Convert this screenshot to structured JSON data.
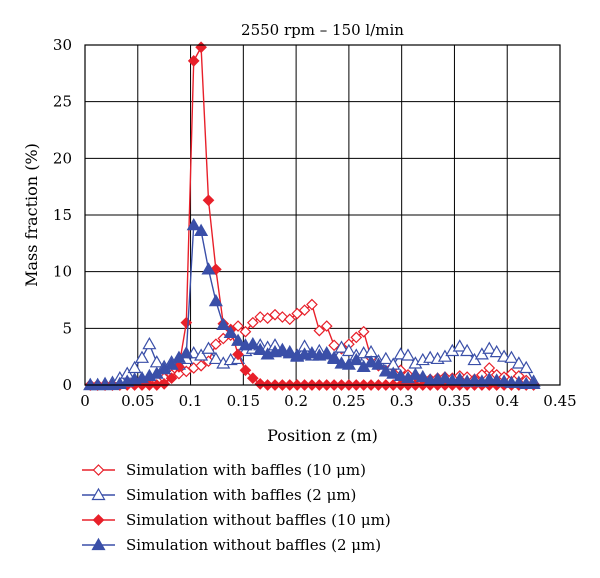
{
  "chart_data": {
    "type": "line",
    "title": "2550 rpm – 150 l/min",
    "xlabel": "Position z (m)",
    "ylabel": "Mass fraction (%)",
    "xlim": [
      0,
      0.45
    ],
    "ylim": [
      0,
      30
    ],
    "x_ticks": [
      "0",
      "0.05",
      "0.1",
      "0.15",
      "0.2",
      "0.25",
      "0.3",
      "0.35",
      "0.4",
      "0.45"
    ],
    "y_ticks": [
      "0",
      "5",
      "10",
      "15",
      "20",
      "25",
      "30"
    ],
    "grid": true,
    "legend_position": "bottom",
    "series": [
      {
        "name": "Simulation with baffles (10 μm)",
        "color": "#e8202a",
        "marker": "diamond-open",
        "x": [
          0.005,
          0.012,
          0.019,
          0.026,
          0.033,
          0.04,
          0.047,
          0.054,
          0.061,
          0.068,
          0.075,
          0.082,
          0.089,
          0.096,
          0.103,
          0.11,
          0.117,
          0.124,
          0.131,
          0.138,
          0.145,
          0.152,
          0.159,
          0.166,
          0.173,
          0.18,
          0.187,
          0.194,
          0.201,
          0.208,
          0.215,
          0.222,
          0.229,
          0.236,
          0.243,
          0.25,
          0.257,
          0.264,
          0.271,
          0.278,
          0.285,
          0.292,
          0.299,
          0.306,
          0.313,
          0.32,
          0.327,
          0.334,
          0.341,
          0.348,
          0.355,
          0.362,
          0.369,
          0.376,
          0.383,
          0.39,
          0.397,
          0.404,
          0.411,
          0.418,
          0.425
        ],
        "y": [
          0,
          0,
          0,
          0,
          0.1,
          0.2,
          0.4,
          0.5,
          0.4,
          0.4,
          0.6,
          0.9,
          1.0,
          1.2,
          1.5,
          1.7,
          2.1,
          3.6,
          4.1,
          4.4,
          5.2,
          4.7,
          5.5,
          6.0,
          5.9,
          6.2,
          6.0,
          5.8,
          6.3,
          6.6,
          7.1,
          4.8,
          5.2,
          3.5,
          3.2,
          3.6,
          4.2,
          4.7,
          2.4,
          1.7,
          1.9,
          1.6,
          1.3,
          0.9,
          0.8,
          0.6,
          0.5,
          0.6,
          0.7,
          0.6,
          0.8,
          0.7,
          0.5,
          0.9,
          1.5,
          0.9,
          0.7,
          1.0,
          0.8,
          0.4,
          0.1
        ]
      },
      {
        "name": "Simulation with baffles (2 μm)",
        "color": "#3a4fa8",
        "marker": "triangle-open",
        "x": [
          0.005,
          0.012,
          0.019,
          0.026,
          0.033,
          0.04,
          0.047,
          0.054,
          0.061,
          0.068,
          0.075,
          0.082,
          0.089,
          0.096,
          0.103,
          0.11,
          0.117,
          0.124,
          0.131,
          0.138,
          0.145,
          0.152,
          0.159,
          0.166,
          0.173,
          0.18,
          0.187,
          0.194,
          0.201,
          0.208,
          0.215,
          0.222,
          0.229,
          0.236,
          0.243,
          0.25,
          0.257,
          0.264,
          0.271,
          0.278,
          0.285,
          0.292,
          0.299,
          0.306,
          0.313,
          0.32,
          0.327,
          0.334,
          0.341,
          0.348,
          0.355,
          0.362,
          0.369,
          0.376,
          0.383,
          0.39,
          0.397,
          0.404,
          0.411,
          0.418,
          0.425
        ],
        "y": [
          0,
          0,
          0.1,
          0.2,
          0.6,
          1.0,
          1.5,
          2.4,
          3.6,
          2.0,
          1.6,
          2.0,
          1.8,
          2.3,
          2.8,
          2.6,
          3.2,
          2.3,
          1.9,
          2.2,
          2.3,
          3.0,
          3.2,
          3.5,
          3.3,
          3.5,
          3.1,
          2.9,
          2.6,
          3.4,
          2.6,
          3.0,
          2.8,
          2.4,
          3.3,
          3.0,
          2.6,
          2.8,
          2.9,
          2.1,
          2.3,
          1.8,
          2.7,
          2.6,
          1.9,
          2.2,
          2.4,
          2.3,
          2.5,
          3.0,
          3.4,
          3.0,
          2.2,
          2.7,
          3.2,
          2.9,
          2.5,
          2.4,
          1.9,
          1.5,
          0.3
        ]
      },
      {
        "name": "Simulation without baffles (10 μm)",
        "color": "#e8202a",
        "marker": "diamond-filled",
        "x": [
          0.005,
          0.012,
          0.019,
          0.026,
          0.033,
          0.04,
          0.047,
          0.054,
          0.061,
          0.068,
          0.075,
          0.082,
          0.089,
          0.096,
          0.103,
          0.11,
          0.117,
          0.124,
          0.131,
          0.138,
          0.145,
          0.152,
          0.159,
          0.166,
          0.173,
          0.18,
          0.187,
          0.194,
          0.201,
          0.208,
          0.215,
          0.222,
          0.229,
          0.236,
          0.243,
          0.25,
          0.257,
          0.264,
          0.271,
          0.278,
          0.285,
          0.292,
          0.299,
          0.306,
          0.313,
          0.32,
          0.327,
          0.334,
          0.341,
          0.348,
          0.355,
          0.362,
          0.369,
          0.376,
          0.383,
          0.39,
          0.397,
          0.404,
          0.411,
          0.418,
          0.425
        ],
        "y": [
          0,
          0,
          0,
          0,
          0,
          0,
          0,
          0,
          0,
          0,
          0.1,
          0.6,
          1.6,
          5.5,
          28.6,
          29.8,
          16.3,
          10.2,
          5.4,
          4.9,
          2.7,
          1.3,
          0.6,
          0.1,
          0,
          0,
          0,
          0,
          0,
          0,
          0,
          0,
          0,
          0,
          0,
          0,
          0,
          0,
          0,
          0,
          0,
          0,
          0,
          0,
          0,
          0,
          0,
          0,
          0,
          0,
          0,
          0,
          0,
          0,
          0,
          0,
          0,
          0,
          0,
          0,
          0
        ]
      },
      {
        "name": "Simulation without baffles (2 μm)",
        "color": "#3a4fa8",
        "marker": "triangle-filled",
        "x": [
          0.005,
          0.012,
          0.019,
          0.026,
          0.033,
          0.04,
          0.047,
          0.054,
          0.061,
          0.068,
          0.075,
          0.082,
          0.089,
          0.096,
          0.103,
          0.11,
          0.117,
          0.124,
          0.131,
          0.138,
          0.145,
          0.152,
          0.159,
          0.166,
          0.173,
          0.18,
          0.187,
          0.194,
          0.201,
          0.208,
          0.215,
          0.222,
          0.229,
          0.236,
          0.243,
          0.25,
          0.257,
          0.264,
          0.271,
          0.278,
          0.285,
          0.292,
          0.299,
          0.306,
          0.313,
          0.32,
          0.327,
          0.334,
          0.341,
          0.348,
          0.355,
          0.362,
          0.369,
          0.376,
          0.383,
          0.39,
          0.397,
          0.404,
          0.411,
          0.418,
          0.425
        ],
        "y": [
          0,
          0,
          0,
          0,
          0.1,
          0.3,
          0.5,
          0.6,
          0.8,
          1.0,
          1.4,
          1.8,
          2.4,
          2.8,
          14.1,
          13.6,
          10.2,
          7.4,
          5.3,
          4.6,
          3.9,
          3.5,
          3.6,
          3.1,
          2.7,
          2.9,
          3.0,
          2.8,
          2.5,
          2.7,
          2.8,
          2.6,
          2.7,
          2.3,
          1.9,
          1.8,
          2.2,
          1.6,
          2.0,
          1.8,
          1.2,
          1.0,
          0.8,
          0.6,
          0.9,
          0.7,
          0.4,
          0.5,
          0.6,
          0.4,
          0.5,
          0.3,
          0.4,
          0.3,
          0.5,
          0.4,
          0.3,
          0.2,
          0.2,
          0.1,
          0.1
        ]
      }
    ]
  }
}
